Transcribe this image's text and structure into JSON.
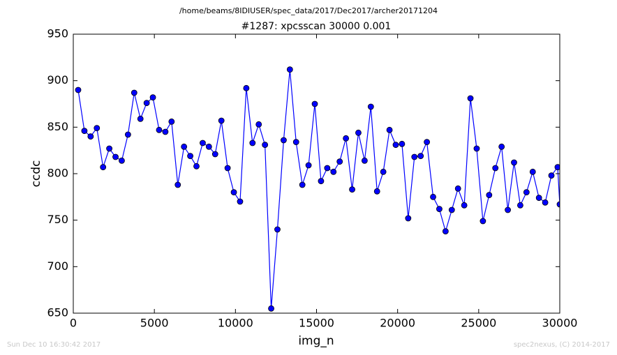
{
  "chart_data": {
    "type": "line",
    "suptitle": "/home/beams/8IDIUSER/spec_data/2017/Dec2017/archer20171204",
    "title": "#1287: xpcsscan 30000 0.001",
    "xlabel": "img_n",
    "ylabel": "ccdc",
    "timestamp": "Sun Dec 10 16:30:42 2017",
    "credit": "spec2nexus, (C) 2014-2017",
    "x": [
      301,
      685,
      1069,
      1453,
      1837,
      2221,
      2605,
      2989,
      3373,
      3757,
      4141,
      4525,
      4909,
      5293,
      5677,
      6061,
      6445,
      6829,
      7213,
      7597,
      7981,
      8365,
      8749,
      9133,
      9517,
      9901,
      10285,
      10669,
      11053,
      11437,
      11821,
      12205,
      12589,
      12973,
      13357,
      13741,
      14125,
      14509,
      14893,
      15277,
      15661,
      16045,
      16429,
      16813,
      17197,
      17581,
      17965,
      18349,
      18733,
      19117,
      19501,
      19885,
      20269,
      20653,
      21037,
      21421,
      21805,
      22189,
      22573,
      22957,
      23341,
      23725,
      24109,
      24493,
      24877,
      25261,
      25645,
      26029,
      26413,
      26797,
      27181,
      27565,
      27949,
      28333,
      28717,
      29101,
      29485,
      29869,
      30000
    ],
    "series": [
      {
        "name": "ccdc",
        "color": "#0000ff",
        "values": [
          890,
          846,
          840,
          849,
          807,
          827,
          818,
          814,
          842,
          887,
          859,
          876,
          882,
          847,
          845,
          856,
          788,
          829,
          819,
          808,
          833,
          829,
          821,
          857,
          806,
          780,
          770,
          892,
          833,
          853,
          831,
          655,
          740,
          836,
          912,
          834,
          788,
          809,
          875,
          792,
          806,
          802,
          813,
          838,
          783,
          844,
          814,
          872,
          781,
          802,
          847,
          831,
          832,
          752,
          818,
          819,
          834,
          775,
          762,
          738,
          761,
          784,
          766,
          881,
          827,
          749,
          777,
          806,
          829,
          761,
          812,
          766,
          780,
          802,
          774,
          769,
          798,
          807,
          767
        ]
      }
    ],
    "xlim": [
      0,
      30000
    ],
    "ylim": [
      650,
      950
    ],
    "xticks": [
      0,
      5000,
      10000,
      15000,
      20000,
      25000,
      30000
    ],
    "yticks": [
      650,
      700,
      750,
      800,
      850,
      900,
      950
    ],
    "grid": false
  }
}
